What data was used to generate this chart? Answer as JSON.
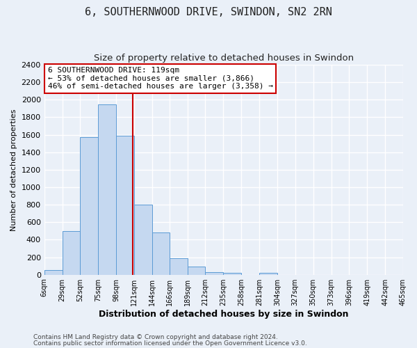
{
  "title": "6, SOUTHERNWOOD DRIVE, SWINDON, SN2 2RN",
  "subtitle": "Size of property relative to detached houses in Swindon",
  "xlabel": "Distribution of detached houses by size in Swindon",
  "ylabel": "Number of detached properties",
  "bin_labels": [
    "6sqm",
    "29sqm",
    "52sqm",
    "75sqm",
    "98sqm",
    "121sqm",
    "144sqm",
    "166sqm",
    "189sqm",
    "212sqm",
    "235sqm",
    "258sqm",
    "281sqm",
    "304sqm",
    "327sqm",
    "350sqm",
    "373sqm",
    "396sqm",
    "419sqm",
    "442sqm",
    "465sqm"
  ],
  "bar_values": [
    50,
    500,
    1575,
    1950,
    1590,
    800,
    480,
    190,
    90,
    30,
    25,
    0,
    20,
    0,
    0,
    0,
    0,
    0,
    0,
    0
  ],
  "bar_color": "#c5d8f0",
  "bar_edge_color": "#5b9bd5",
  "red_line_x": 119,
  "bin_edges": [
    6,
    29,
    52,
    75,
    98,
    121,
    144,
    166,
    189,
    212,
    235,
    258,
    281,
    304,
    327,
    350,
    373,
    396,
    419,
    442,
    465
  ],
  "ylim": [
    0,
    2400
  ],
  "yticks": [
    0,
    200,
    400,
    600,
    800,
    1000,
    1200,
    1400,
    1600,
    1800,
    2000,
    2200,
    2400
  ],
  "annotation_box_text": [
    "6 SOUTHERNWOOD DRIVE: 119sqm",
    "← 53% of detached houses are smaller (3,866)",
    "46% of semi-detached houses are larger (3,358) →"
  ],
  "annotation_box_color": "#ffffff",
  "annotation_box_edge_color": "#cc0000",
  "footer1": "Contains HM Land Registry data © Crown copyright and database right 2024.",
  "footer2": "Contains public sector information licensed under the Open Government Licence v3.0.",
  "background_color": "#eaf0f8",
  "plot_background": "#eaf0f8",
  "grid_color": "#ffffff",
  "title_fontsize": 11,
  "subtitle_fontsize": 9.5
}
